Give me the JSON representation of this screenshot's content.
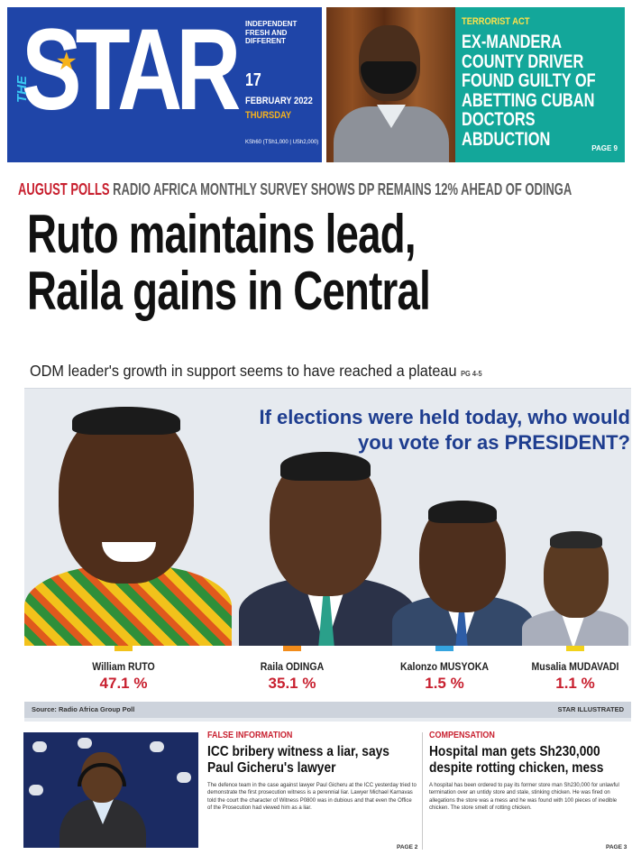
{
  "masthead": {
    "logo_prefix": "THE",
    "logo": "STAR",
    "tagline": "INDEPENDENT FRESH AND DIFFERENT",
    "date_day": "17",
    "date_month_year": "FEBRUARY 2022",
    "date_weekday": "THURSDAY",
    "price": "KSh60 (TSh1,000 | USh2,000)"
  },
  "teaser": {
    "kicker": "TERRORIST ACT",
    "headline": "EX-MANDERA COUNTY DRIVER FOUND GUILTY OF ABETTING CUBAN DOCTORS ABDUCTION",
    "page": "PAGE 9"
  },
  "lead": {
    "strap_kicker": "AUGUST POLLS",
    "strap_text": "RADIO AFRICA MONTHLY SURVEY SHOWS DP REMAINS 12% AHEAD OF ODINGA",
    "headline_line1": "Ruto maintains lead,",
    "headline_line2": "Raila gains in Central",
    "deck": "ODM leader's growth in support seems to have reached a plateau",
    "deck_page": "PG 4-5"
  },
  "poll": {
    "question_line1": "If elections were held today, who would",
    "question_line2_prefix": "you vote for as ",
    "question_line2_emphasis": "PRESIDENT?",
    "candidates": [
      {
        "name": "William RUTO",
        "value": "47.1 %",
        "color": "#f2c21b"
      },
      {
        "name": "Raila ODINGA",
        "value": "35.1 %",
        "color": "#f28c1b"
      },
      {
        "name": "Kalonzo MUSYOKA",
        "value": "1.5 %",
        "color": "#35a4df"
      },
      {
        "name": "Musalia MUDAVADI",
        "value": "1.1 %",
        "color": "#f2d21b"
      }
    ],
    "source": "Source: Radio Africa Group Poll",
    "credit": "STAR ILLUSTRATED"
  },
  "stories": [
    {
      "kicker": "FALSE INFORMATION",
      "headline": "ICC bribery witness a liar, says Paul Gicheru's lawyer",
      "body": "The defence team in the case against lawyer Paul Gicheru at the ICC yesterday tried to demonstrate the first prosecution witness is a perennial liar. Lawyer Michael Karnavas told the court the character of Witness P0800 was in dubious and that even the Office of the Prosecution had viewed him as a liar.",
      "page": "PAGE 2"
    },
    {
      "kicker": "COMPENSATION",
      "headline": "Hospital man gets Sh230,000 despite rotting chicken, mess",
      "body": "A hospital has been ordered to pay its former store man Sh230,000 for unlawful termination over an untidy store and stale, stinking chicken. He was fired on allegations the store was a mess and he was found with 100 pieces of inedible chicken. The store smelt of rotting chicken.",
      "page": "PAGE 3"
    }
  ]
}
